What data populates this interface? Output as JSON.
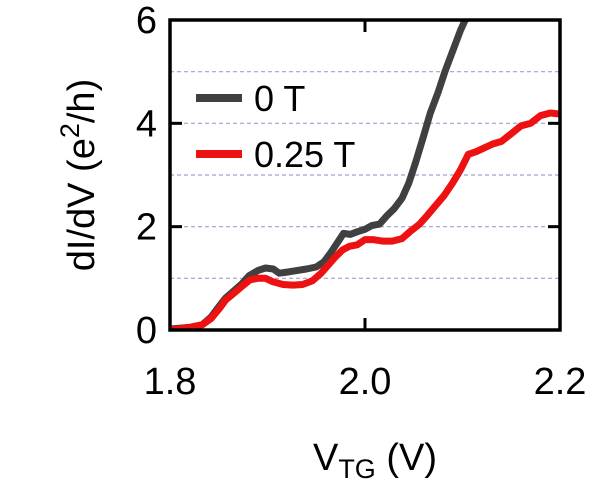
{
  "chart_data": {
    "type": "line",
    "xlabel_main": "V",
    "xlabel_sub": "TG",
    "xlabel_unit": " (V)",
    "ylabel_pre": "dI/dV (e",
    "ylabel_sup": "2",
    "ylabel_post": "/h)",
    "xlim": [
      1.8,
      2.2
    ],
    "ylim": [
      0,
      6
    ],
    "xticks": [
      {
        "value": 1.8,
        "label": "1.8"
      },
      {
        "value": 2.0,
        "label": "2.0"
      },
      {
        "value": 2.2,
        "label": "2.2"
      }
    ],
    "yticks": [
      {
        "value": 0,
        "label": "0"
      },
      {
        "value": 2,
        "label": "2"
      },
      {
        "value": 4,
        "label": "4"
      },
      {
        "value": 6,
        "label": "6"
      }
    ],
    "grid_y": [
      1,
      2,
      3,
      4,
      5
    ],
    "legend_position": "upper-left",
    "series": [
      {
        "name": "0 T",
        "color": "#404040",
        "points": [
          [
            1.8,
            0.02
          ],
          [
            1.82,
            0.05
          ],
          [
            1.833,
            0.1
          ],
          [
            1.842,
            0.25
          ],
          [
            1.85,
            0.45
          ],
          [
            1.857,
            0.62
          ],
          [
            1.865,
            0.75
          ],
          [
            1.874,
            0.9
          ],
          [
            1.881,
            1.05
          ],
          [
            1.89,
            1.15
          ],
          [
            1.898,
            1.2
          ],
          [
            1.906,
            1.18
          ],
          [
            1.912,
            1.1
          ],
          [
            1.92,
            1.12
          ],
          [
            1.93,
            1.15
          ],
          [
            1.94,
            1.18
          ],
          [
            1.95,
            1.22
          ],
          [
            1.958,
            1.32
          ],
          [
            1.965,
            1.5
          ],
          [
            1.972,
            1.7
          ],
          [
            1.978,
            1.87
          ],
          [
            1.985,
            1.85
          ],
          [
            1.992,
            1.9
          ],
          [
            2.0,
            1.95
          ],
          [
            2.007,
            2.02
          ],
          [
            2.015,
            2.05
          ],
          [
            2.022,
            2.2
          ],
          [
            2.03,
            2.35
          ],
          [
            2.038,
            2.55
          ],
          [
            2.045,
            2.85
          ],
          [
            2.052,
            3.25
          ],
          [
            2.06,
            3.75
          ],
          [
            2.067,
            4.2
          ],
          [
            2.075,
            4.6
          ],
          [
            2.082,
            5.0
          ],
          [
            2.09,
            5.4
          ],
          [
            2.098,
            5.8
          ],
          [
            2.104,
            6.05
          ]
        ]
      },
      {
        "name": "0.25 T",
        "color": "#ee1111",
        "points": [
          [
            1.8,
            0.0
          ],
          [
            1.82,
            0.05
          ],
          [
            1.833,
            0.1
          ],
          [
            1.842,
            0.22
          ],
          [
            1.85,
            0.4
          ],
          [
            1.857,
            0.58
          ],
          [
            1.866,
            0.72
          ],
          [
            1.874,
            0.85
          ],
          [
            1.882,
            0.97
          ],
          [
            1.89,
            1.0
          ],
          [
            1.898,
            1.0
          ],
          [
            1.906,
            0.93
          ],
          [
            1.916,
            0.88
          ],
          [
            1.926,
            0.87
          ],
          [
            1.936,
            0.88
          ],
          [
            1.946,
            0.95
          ],
          [
            1.955,
            1.1
          ],
          [
            1.962,
            1.25
          ],
          [
            1.97,
            1.42
          ],
          [
            1.977,
            1.55
          ],
          [
            1.984,
            1.62
          ],
          [
            1.992,
            1.65
          ],
          [
            2.0,
            1.75
          ],
          [
            2.008,
            1.75
          ],
          [
            2.018,
            1.72
          ],
          [
            2.028,
            1.72
          ],
          [
            2.038,
            1.77
          ],
          [
            2.046,
            1.9
          ],
          [
            2.056,
            2.05
          ],
          [
            2.064,
            2.22
          ],
          [
            2.072,
            2.4
          ],
          [
            2.081,
            2.6
          ],
          [
            2.09,
            2.85
          ],
          [
            2.098,
            3.1
          ],
          [
            2.106,
            3.4
          ],
          [
            2.114,
            3.45
          ],
          [
            2.122,
            3.52
          ],
          [
            2.131,
            3.6
          ],
          [
            2.14,
            3.65
          ],
          [
            2.15,
            3.8
          ],
          [
            2.16,
            3.95
          ],
          [
            2.17,
            4.0
          ],
          [
            2.18,
            4.15
          ],
          [
            2.19,
            4.2
          ],
          [
            2.2,
            4.18
          ]
        ]
      }
    ]
  }
}
